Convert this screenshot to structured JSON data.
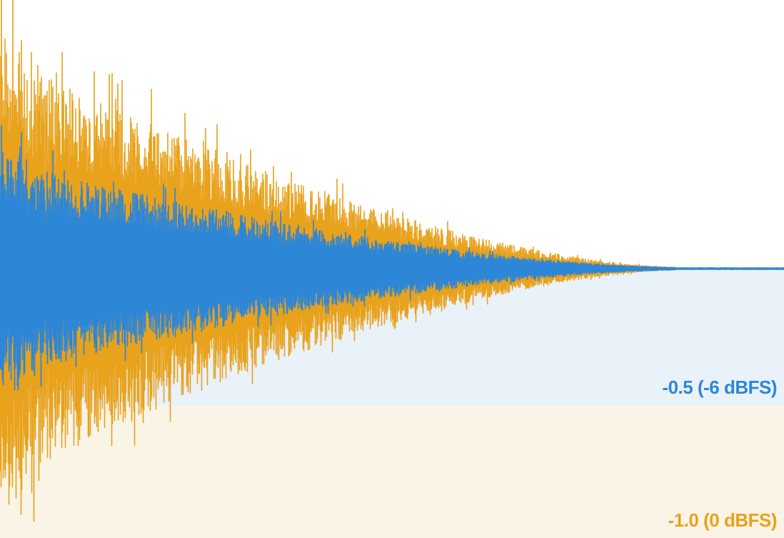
{
  "chart_data": {
    "type": "area",
    "title": "",
    "xlabel": "",
    "ylabel": "",
    "ylim": [
      -1.0,
      1.0
    ],
    "grid": false,
    "legend": "none",
    "reference_bands": [
      {
        "label": "-0.5 (-6 dBFS)",
        "from": 0,
        "to": -0.5,
        "color": "#2e86d6",
        "fill": "#e9f1f9"
      },
      {
        "label": "-1.0 (0 dBFS)",
        "from": -0.5,
        "to": -1.0,
        "color": "#e8a21c",
        "fill": "#faf4e7"
      }
    ],
    "series": [
      {
        "color": "#e8a21c",
        "peak_amplitude": 1.0,
        "decay_length_fraction": 0.78,
        "tail_amplitude": 0.005
      },
      {
        "color": "#2e86d6",
        "peak_amplitude": 0.5,
        "decay_length_fraction": 0.78,
        "tail_amplitude": 0.005
      }
    ]
  }
}
